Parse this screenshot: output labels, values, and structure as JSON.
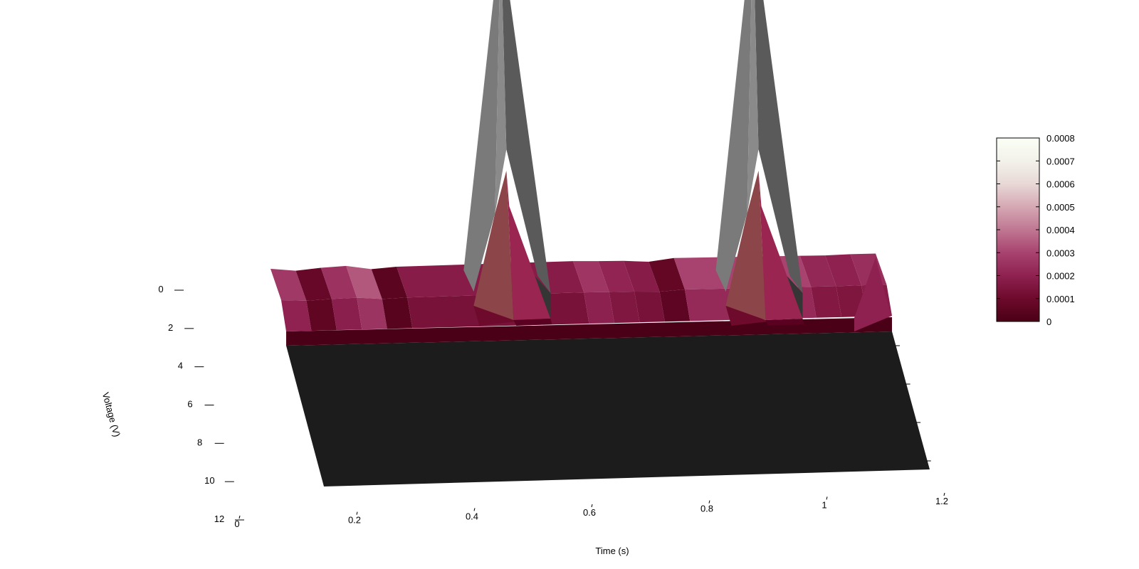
{
  "chart_data": {
    "type": "surface",
    "title": "",
    "xlabel": "Time (s)",
    "ylabel": "Voltage (V)",
    "x_ticks": [
      "0",
      "0.2",
      "0.4",
      "0.6",
      "0.8",
      "1",
      "1.2"
    ],
    "y_ticks": [
      "0",
      "2",
      "4",
      "6",
      "8",
      "10",
      "12"
    ],
    "x_range": [
      0,
      1.2
    ],
    "y_range": [
      0,
      12
    ],
    "z_range": [
      0,
      0.0008
    ],
    "colorbar": {
      "ticks": [
        "0",
        "0.0001",
        "0.0002",
        "0.0003",
        "0.0004",
        "0.0005",
        "0.0006",
        "0.0007",
        "0.0008"
      ],
      "colormap": [
        "#4a0016",
        "#6e0a2c",
        "#8e2150",
        "#a8436f",
        "#c07792",
        "#d5a8b4",
        "#e8d8d6",
        "#f3f2ea",
        "#fafff5"
      ]
    },
    "surface": {
      "baseline_profile": [
        {
          "t": 0.0,
          "z": 0.00027
        },
        {
          "t": 0.05,
          "z": 8e-05
        },
        {
          "t": 0.1,
          "z": 0.00025
        },
        {
          "t": 0.15,
          "z": 0.00034
        },
        {
          "t": 0.2,
          "z": 5e-05
        },
        {
          "t": 0.25,
          "z": 0.00018
        },
        {
          "t": 0.6,
          "z": 0.00026
        },
        {
          "t": 0.65,
          "z": 0.00021
        },
        {
          "t": 0.7,
          "z": 0.00018
        },
        {
          "t": 0.75,
          "z": 7e-05
        },
        {
          "t": 0.8,
          "z": 0.0003
        },
        {
          "t": 1.05,
          "z": 0.00022
        },
        {
          "t": 1.1,
          "z": 0.0002
        },
        {
          "t": 1.15,
          "z": 0.00024
        }
      ],
      "peaks": [
        {
          "t": 0.4,
          "v": 1.0,
          "z": 0.00123
        },
        {
          "t": 0.9,
          "v": 1.0,
          "z": 0.00125
        }
      ],
      "low_voltage_band": [
        0,
        2
      ],
      "flat_region_color": "#1c1c1c",
      "peak_color": "#7a7a7a"
    }
  }
}
